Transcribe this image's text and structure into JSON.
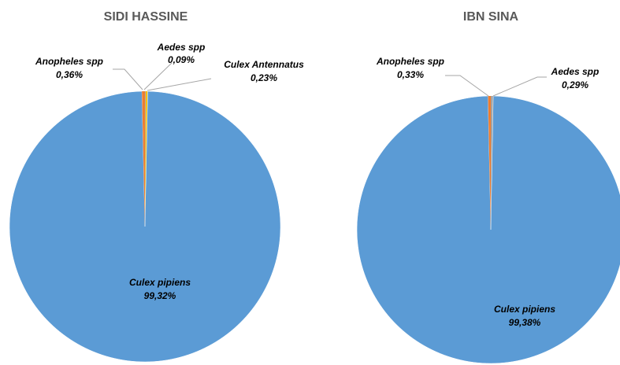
{
  "chart_data": [
    {
      "type": "pie",
      "title": "SIDI HASSINE",
      "slices": [
        {
          "label": "Culex pipiens",
          "value": 99.32,
          "display": "99,32%",
          "color": "#5b9bd5"
        },
        {
          "label": "Anopheles spp",
          "value": 0.36,
          "display": "0,36%",
          "color": "#ed7d31"
        },
        {
          "label": "Aedes spp",
          "value": 0.09,
          "display": "0,09%",
          "color": "#a5a5a5"
        },
        {
          "label": "Culex Antennatus",
          "value": 0.23,
          "display": "0,23%",
          "color": "#ffc000"
        }
      ]
    },
    {
      "type": "pie",
      "title": "IBN SINA",
      "slices": [
        {
          "label": "Culex pipiens",
          "value": 99.38,
          "display": "99,38%",
          "color": "#5b9bd5"
        },
        {
          "label": "Anopheles spp",
          "value": 0.33,
          "display": "0,33%",
          "color": "#ed7d31"
        },
        {
          "label": "Aedes spp",
          "value": 0.29,
          "display": "0,29%",
          "color": "#a5a5a5"
        }
      ]
    }
  ]
}
